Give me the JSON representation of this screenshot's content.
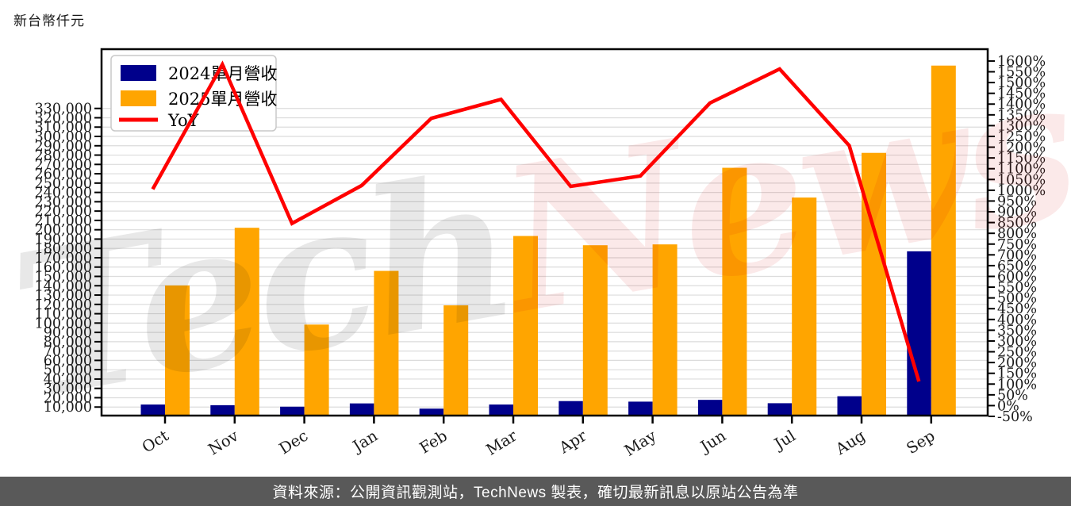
{
  "page": {
    "title": "新台幣仟元",
    "footer": "資料來源：公開資訊觀測站，TechNews 製表，確切最新訊息以原站公告為準",
    "watermark": {
      "part1": "Tech",
      "part2": "News"
    }
  },
  "legend": {
    "position": "upper left",
    "items": [
      {
        "label": "2024單月營收",
        "swatch": "bar",
        "color": "#00008B"
      },
      {
        "label": "2025單月營收",
        "swatch": "bar",
        "color": "#FFA500"
      },
      {
        "label": "YoY",
        "swatch": "line",
        "color": "#FF0000"
      }
    ]
  },
  "chart_data": {
    "type": "bar",
    "subtype": "grouped-bars-with-line-dual-axis",
    "title": "新台幣仟元",
    "categories": [
      "Oct",
      "Nov",
      "Dec",
      "Jan",
      "Feb",
      "Mar",
      "Apr",
      "May",
      "Jun",
      "Jul",
      "Aug",
      "Sep"
    ],
    "series": [
      {
        "name": "2024單月營收",
        "type": "bar",
        "axis": "left",
        "color": "#00008B",
        "values": [
          12700,
          12000,
          10400,
          13900,
          8300,
          12700,
          16400,
          15800,
          17700,
          14100,
          21600,
          176900
        ]
      },
      {
        "name": "2025單月營收",
        "type": "bar",
        "axis": "left",
        "color": "#FFA500",
        "values": [
          140300,
          202100,
          98400,
          155900,
          119000,
          193300,
          183400,
          184300,
          266400,
          234500,
          282400,
          375900
        ]
      },
      {
        "name": "YoY",
        "type": "line",
        "axis": "right",
        "color": "#FF0000",
        "unit": "%",
        "values": [
          1005,
          1584,
          846,
          1022,
          1334,
          1422,
          1018,
          1066,
          1405,
          1563,
          1207,
          112
        ]
      }
    ],
    "left_axis": {
      "unit": "新台幣仟元",
      "min": 0,
      "max": 393500,
      "tick_step": 10000,
      "tick_labels": [
        "330,000",
        "320,000",
        "310,000",
        "300,000",
        "290,000",
        "280,000",
        "270,000",
        "260,000",
        "250,000",
        "240,000",
        "230,000",
        "220,000",
        "210,000",
        "200,000",
        "190,000",
        "180,000",
        "170,000",
        "160,000",
        "150,000",
        "140,000",
        "130,000",
        "120,000",
        "110,000",
        "100,000",
        "90,000",
        "80,000",
        "70,000",
        "60,000",
        "50,000",
        "40,000",
        "30,000",
        "20,000",
        "10,000"
      ]
    },
    "right_axis": {
      "unit": "%",
      "min": -50,
      "max": 1655,
      "tick_step": 50,
      "tick_labels": [
        "1600%",
        "1550%",
        "1500%",
        "1450%",
        "1400%",
        "1350%",
        "1300%",
        "1250%",
        "1200%",
        "1150%",
        "1100%",
        "1050%",
        "1000%",
        "950%",
        "900%",
        "850%",
        "800%",
        "750%",
        "700%",
        "650%",
        "600%",
        "550%",
        "500%",
        "450%",
        "400%",
        "350%",
        "300%",
        "250%",
        "200%",
        "150%",
        "100%",
        "50%",
        "0%",
        "-50%"
      ]
    },
    "grid": true,
    "legend_position": "upper left"
  },
  "colors": {
    "bar_2024": "#00008B",
    "bar_2025": "#FFA500",
    "yoy_line": "#FF0000",
    "gridline": "#dcdcdc",
    "axis": "#000000",
    "footer_bg": "#595959",
    "footer_text": "#ffffff",
    "watermark_gray": "#000000",
    "watermark_red": "#cc0000"
  }
}
